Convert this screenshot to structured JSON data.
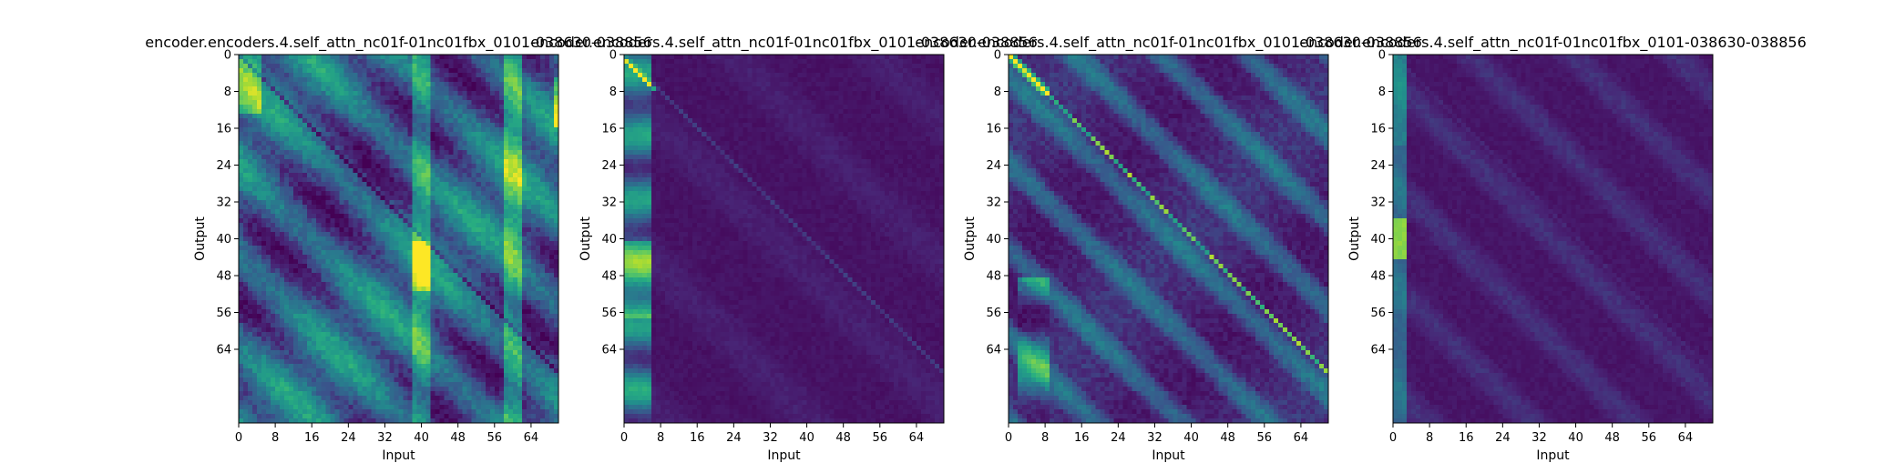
{
  "chart_data": [
    {
      "type": "heatmap",
      "title": "encoder.encoders.4.self_attn_nc01f-01nc01fbx_0101-038630-038856",
      "xlabel": "Input",
      "ylabel": "Output",
      "xticks": [
        "0",
        "8",
        "16",
        "24",
        "32",
        "40",
        "48",
        "56",
        "64"
      ],
      "yticks": [
        "0",
        "8",
        "16",
        "24",
        "32",
        "40",
        "48",
        "56",
        "64"
      ],
      "xlim": [
        0,
        70
      ],
      "ylim": [
        0,
        80
      ],
      "colormap": "viridis",
      "pattern": "diffuse attention with strong diagonal striping and bright columns near inputs 40 and 60"
    },
    {
      "type": "heatmap",
      "title": "encoder.encoders.4.self_attn_nc01f-01nc01fbx_0101-038630-038856",
      "xlabel": "Input",
      "ylabel": "Output",
      "xticks": [
        "0",
        "8",
        "16",
        "24",
        "32",
        "40",
        "48",
        "56",
        "64"
      ],
      "yticks": [
        "0",
        "8",
        "16",
        "24",
        "32",
        "40",
        "48",
        "56",
        "64"
      ],
      "xlim": [
        0,
        70
      ],
      "ylim": [
        0,
        80
      ],
      "colormap": "viridis",
      "pattern": "mostly dark with attention concentrated on the first inputs (0-5)"
    },
    {
      "type": "heatmap",
      "title": "encoder.encoders.4.self_attn_nc01f-01nc01fbx_0101-038630-038856",
      "xlabel": "Input",
      "ylabel": "Output",
      "xticks": [
        "0",
        "8",
        "16",
        "24",
        "32",
        "40",
        "48",
        "56",
        "64"
      ],
      "yticks": [
        "0",
        "8",
        "16",
        "24",
        "32",
        "40",
        "48",
        "56",
        "64"
      ],
      "xlim": [
        0,
        70
      ],
      "ylim": [
        0,
        80
      ],
      "colormap": "viridis",
      "pattern": "strong main diagonal with parallel diagonal bands"
    },
    {
      "type": "heatmap",
      "title": "encoder.encoders.4.self_attn_nc01f-01nc01fbx_0101-038630-038856",
      "xlabel": "Input",
      "ylabel": "Output",
      "xticks": [
        "0",
        "8",
        "16",
        "24",
        "32",
        "40",
        "48",
        "56",
        "64"
      ],
      "yticks": [
        "0",
        "8",
        "16",
        "24",
        "32",
        "40",
        "48",
        "56",
        "64"
      ],
      "xlim": [
        0,
        70
      ],
      "ylim": [
        0,
        80
      ],
      "colormap": "viridis",
      "pattern": "mostly dark with faint diagonals and bright first column near output 40"
    }
  ]
}
